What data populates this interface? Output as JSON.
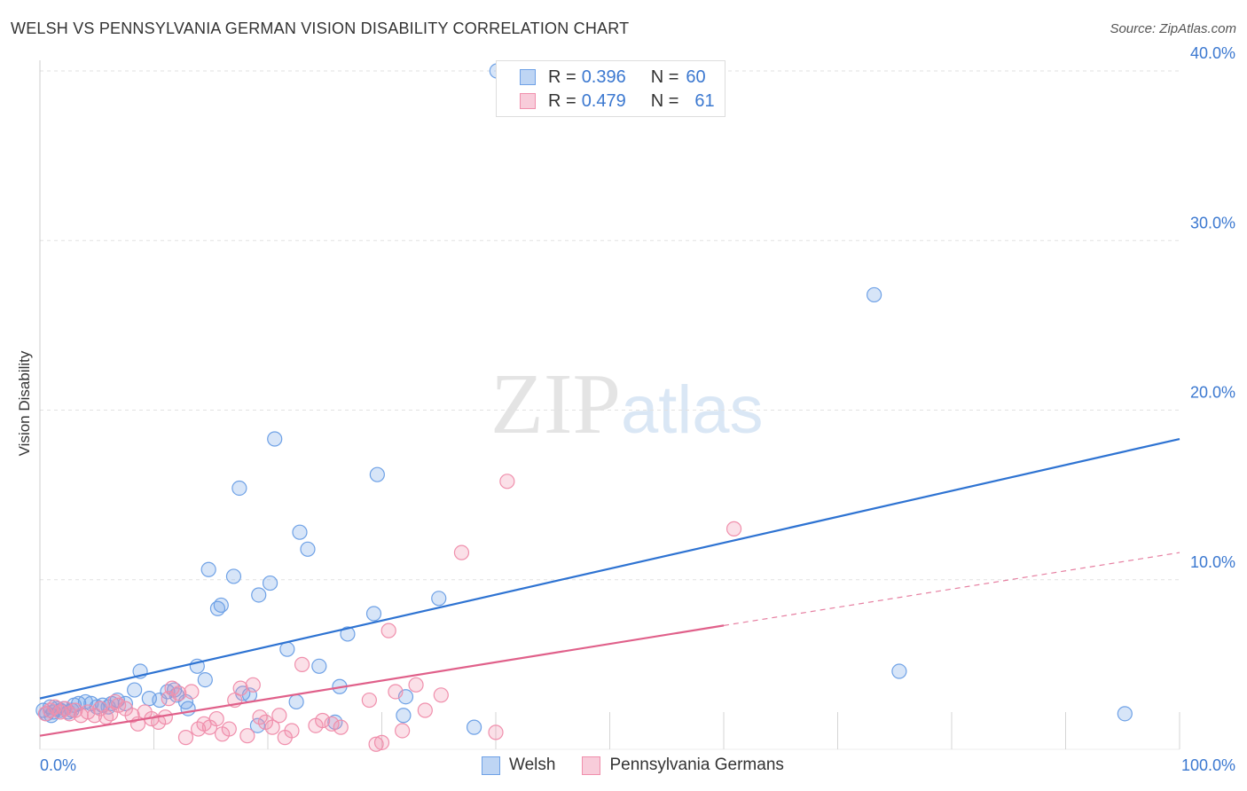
{
  "chart_data": {
    "type": "scatter",
    "title": "WELSH VS PENNSYLVANIA GERMAN VISION DISABILITY CORRELATION CHART",
    "source": "Source: ZipAtlas.com",
    "xlabel": "",
    "ylabel": "Vision Disability",
    "xlim": [
      0,
      100
    ],
    "ylim": [
      0,
      40
    ],
    "x_tick_labels": [
      "0.0%",
      "100.0%"
    ],
    "y_ticks": [
      10,
      20,
      30,
      40
    ],
    "y_tick_labels": [
      "10.0%",
      "20.0%",
      "30.0%",
      "40.0%"
    ],
    "grid": true,
    "watermark": {
      "zip": "ZIP",
      "atlas": "atlas"
    },
    "legend": [
      {
        "r_label": "R =",
        "r_value": "0.396",
        "n_label": "N =",
        "n_value": "60"
      },
      {
        "r_label": "R =",
        "r_value": "0.479",
        "n_label": "N =",
        "n_value": "61"
      }
    ],
    "series": [
      {
        "name": "Welsh",
        "color": "#6ea1e6",
        "fill": "rgba(110,161,230,0.28)",
        "line_color": "#2e73d2",
        "trend": {
          "x0": 0,
          "y0": 3.0,
          "x1": 100,
          "y1": 18.3
        },
        "points": [
          [
            0.3,
            2.3
          ],
          [
            0.6,
            2.1
          ],
          [
            0.9,
            2.5
          ],
          [
            1.2,
            2.2
          ],
          [
            1.5,
            2.4
          ],
          [
            1.8,
            2.3
          ],
          [
            2.1,
            2.4
          ],
          [
            2.5,
            2.2
          ],
          [
            3.0,
            2.6
          ],
          [
            3.4,
            2.7
          ],
          [
            4.0,
            2.8
          ],
          [
            4.5,
            2.7
          ],
          [
            5.0,
            2.5
          ],
          [
            5.5,
            2.6
          ],
          [
            6.0,
            2.5
          ],
          [
            6.8,
            2.9
          ],
          [
            7.5,
            2.7
          ],
          [
            8.3,
            3.5
          ],
          [
            8.8,
            4.6
          ],
          [
            9.6,
            3.0
          ],
          [
            10.5,
            2.9
          ],
          [
            11.2,
            3.4
          ],
          [
            12.0,
            3.2
          ],
          [
            12.8,
            2.8
          ],
          [
            13.0,
            2.4
          ],
          [
            13.8,
            4.9
          ],
          [
            14.5,
            4.1
          ],
          [
            14.8,
            10.6
          ],
          [
            15.6,
            8.3
          ],
          [
            15.9,
            8.5
          ],
          [
            17.0,
            10.2
          ],
          [
            17.5,
            15.4
          ],
          [
            17.8,
            3.3
          ],
          [
            18.4,
            3.2
          ],
          [
            19.1,
            1.4
          ],
          [
            19.2,
            9.1
          ],
          [
            20.2,
            9.8
          ],
          [
            20.6,
            18.3
          ],
          [
            21.7,
            5.9
          ],
          [
            22.5,
            2.8
          ],
          [
            22.8,
            12.8
          ],
          [
            23.5,
            11.8
          ],
          [
            24.5,
            4.9
          ],
          [
            25.9,
            1.6
          ],
          [
            26.3,
            3.7
          ],
          [
            27.0,
            6.8
          ],
          [
            29.3,
            8.0
          ],
          [
            29.6,
            16.2
          ],
          [
            31.9,
            2.0
          ],
          [
            32.1,
            3.1
          ],
          [
            35.0,
            8.9
          ],
          [
            38.1,
            1.3
          ],
          [
            40.1,
            40.0
          ],
          [
            75.4,
            4.6
          ],
          [
            73.2,
            26.8
          ],
          [
            95.2,
            2.1
          ],
          [
            1.0,
            2.0
          ],
          [
            2.8,
            2.3
          ],
          [
            6.3,
            2.7
          ],
          [
            11.8,
            3.5
          ]
        ]
      },
      {
        "name": "Pennsylvania Germans",
        "color": "#f08fac",
        "fill": "rgba(240,143,172,0.28)",
        "line_color": "#e0608a",
        "trend": {
          "x0": 0,
          "y0": 0.8,
          "x1": 60,
          "y1": 7.3
        },
        "trend_dashed": {
          "x0": 60,
          "y0": 7.3,
          "x1": 100,
          "y1": 11.6
        },
        "points": [
          [
            0.5,
            2.1
          ],
          [
            0.9,
            2.3
          ],
          [
            1.3,
            2.5
          ],
          [
            1.8,
            2.2
          ],
          [
            2.2,
            2.4
          ],
          [
            2.6,
            2.1
          ],
          [
            3.1,
            2.3
          ],
          [
            3.6,
            2.0
          ],
          [
            4.2,
            2.2
          ],
          [
            4.8,
            2.0
          ],
          [
            5.3,
            2.4
          ],
          [
            5.8,
            1.9
          ],
          [
            6.2,
            2.1
          ],
          [
            6.9,
            2.6
          ],
          [
            7.5,
            2.4
          ],
          [
            8.1,
            2.0
          ],
          [
            8.6,
            1.5
          ],
          [
            9.2,
            2.2
          ],
          [
            9.8,
            1.8
          ],
          [
            10.4,
            1.6
          ],
          [
            11.0,
            1.9
          ],
          [
            11.6,
            3.6
          ],
          [
            12.2,
            3.3
          ],
          [
            12.8,
            0.7
          ],
          [
            13.3,
            3.4
          ],
          [
            13.9,
            1.2
          ],
          [
            14.4,
            1.5
          ],
          [
            14.9,
            1.3
          ],
          [
            15.5,
            1.8
          ],
          [
            16.0,
            0.9
          ],
          [
            16.6,
            1.2
          ],
          [
            17.1,
            2.9
          ],
          [
            17.6,
            3.6
          ],
          [
            18.2,
            0.8
          ],
          [
            18.7,
            3.8
          ],
          [
            19.3,
            1.9
          ],
          [
            19.8,
            1.6
          ],
          [
            20.4,
            1.3
          ],
          [
            21.0,
            2.0
          ],
          [
            21.5,
            0.7
          ],
          [
            22.1,
            1.1
          ],
          [
            23.0,
            5.0
          ],
          [
            24.2,
            1.4
          ],
          [
            24.8,
            1.7
          ],
          [
            25.6,
            1.5
          ],
          [
            26.4,
            1.3
          ],
          [
            28.9,
            2.9
          ],
          [
            30.0,
            0.4
          ],
          [
            30.6,
            7.0
          ],
          [
            31.2,
            3.4
          ],
          [
            31.8,
            1.1
          ],
          [
            33.0,
            3.8
          ],
          [
            33.8,
            2.3
          ],
          [
            35.2,
            3.2
          ],
          [
            37.0,
            11.6
          ],
          [
            40.0,
            1.0
          ],
          [
            41.0,
            15.8
          ],
          [
            60.9,
            13.0
          ],
          [
            29.5,
            0.3
          ],
          [
            11.3,
            3.0
          ],
          [
            6.6,
            2.8
          ]
        ]
      }
    ]
  }
}
